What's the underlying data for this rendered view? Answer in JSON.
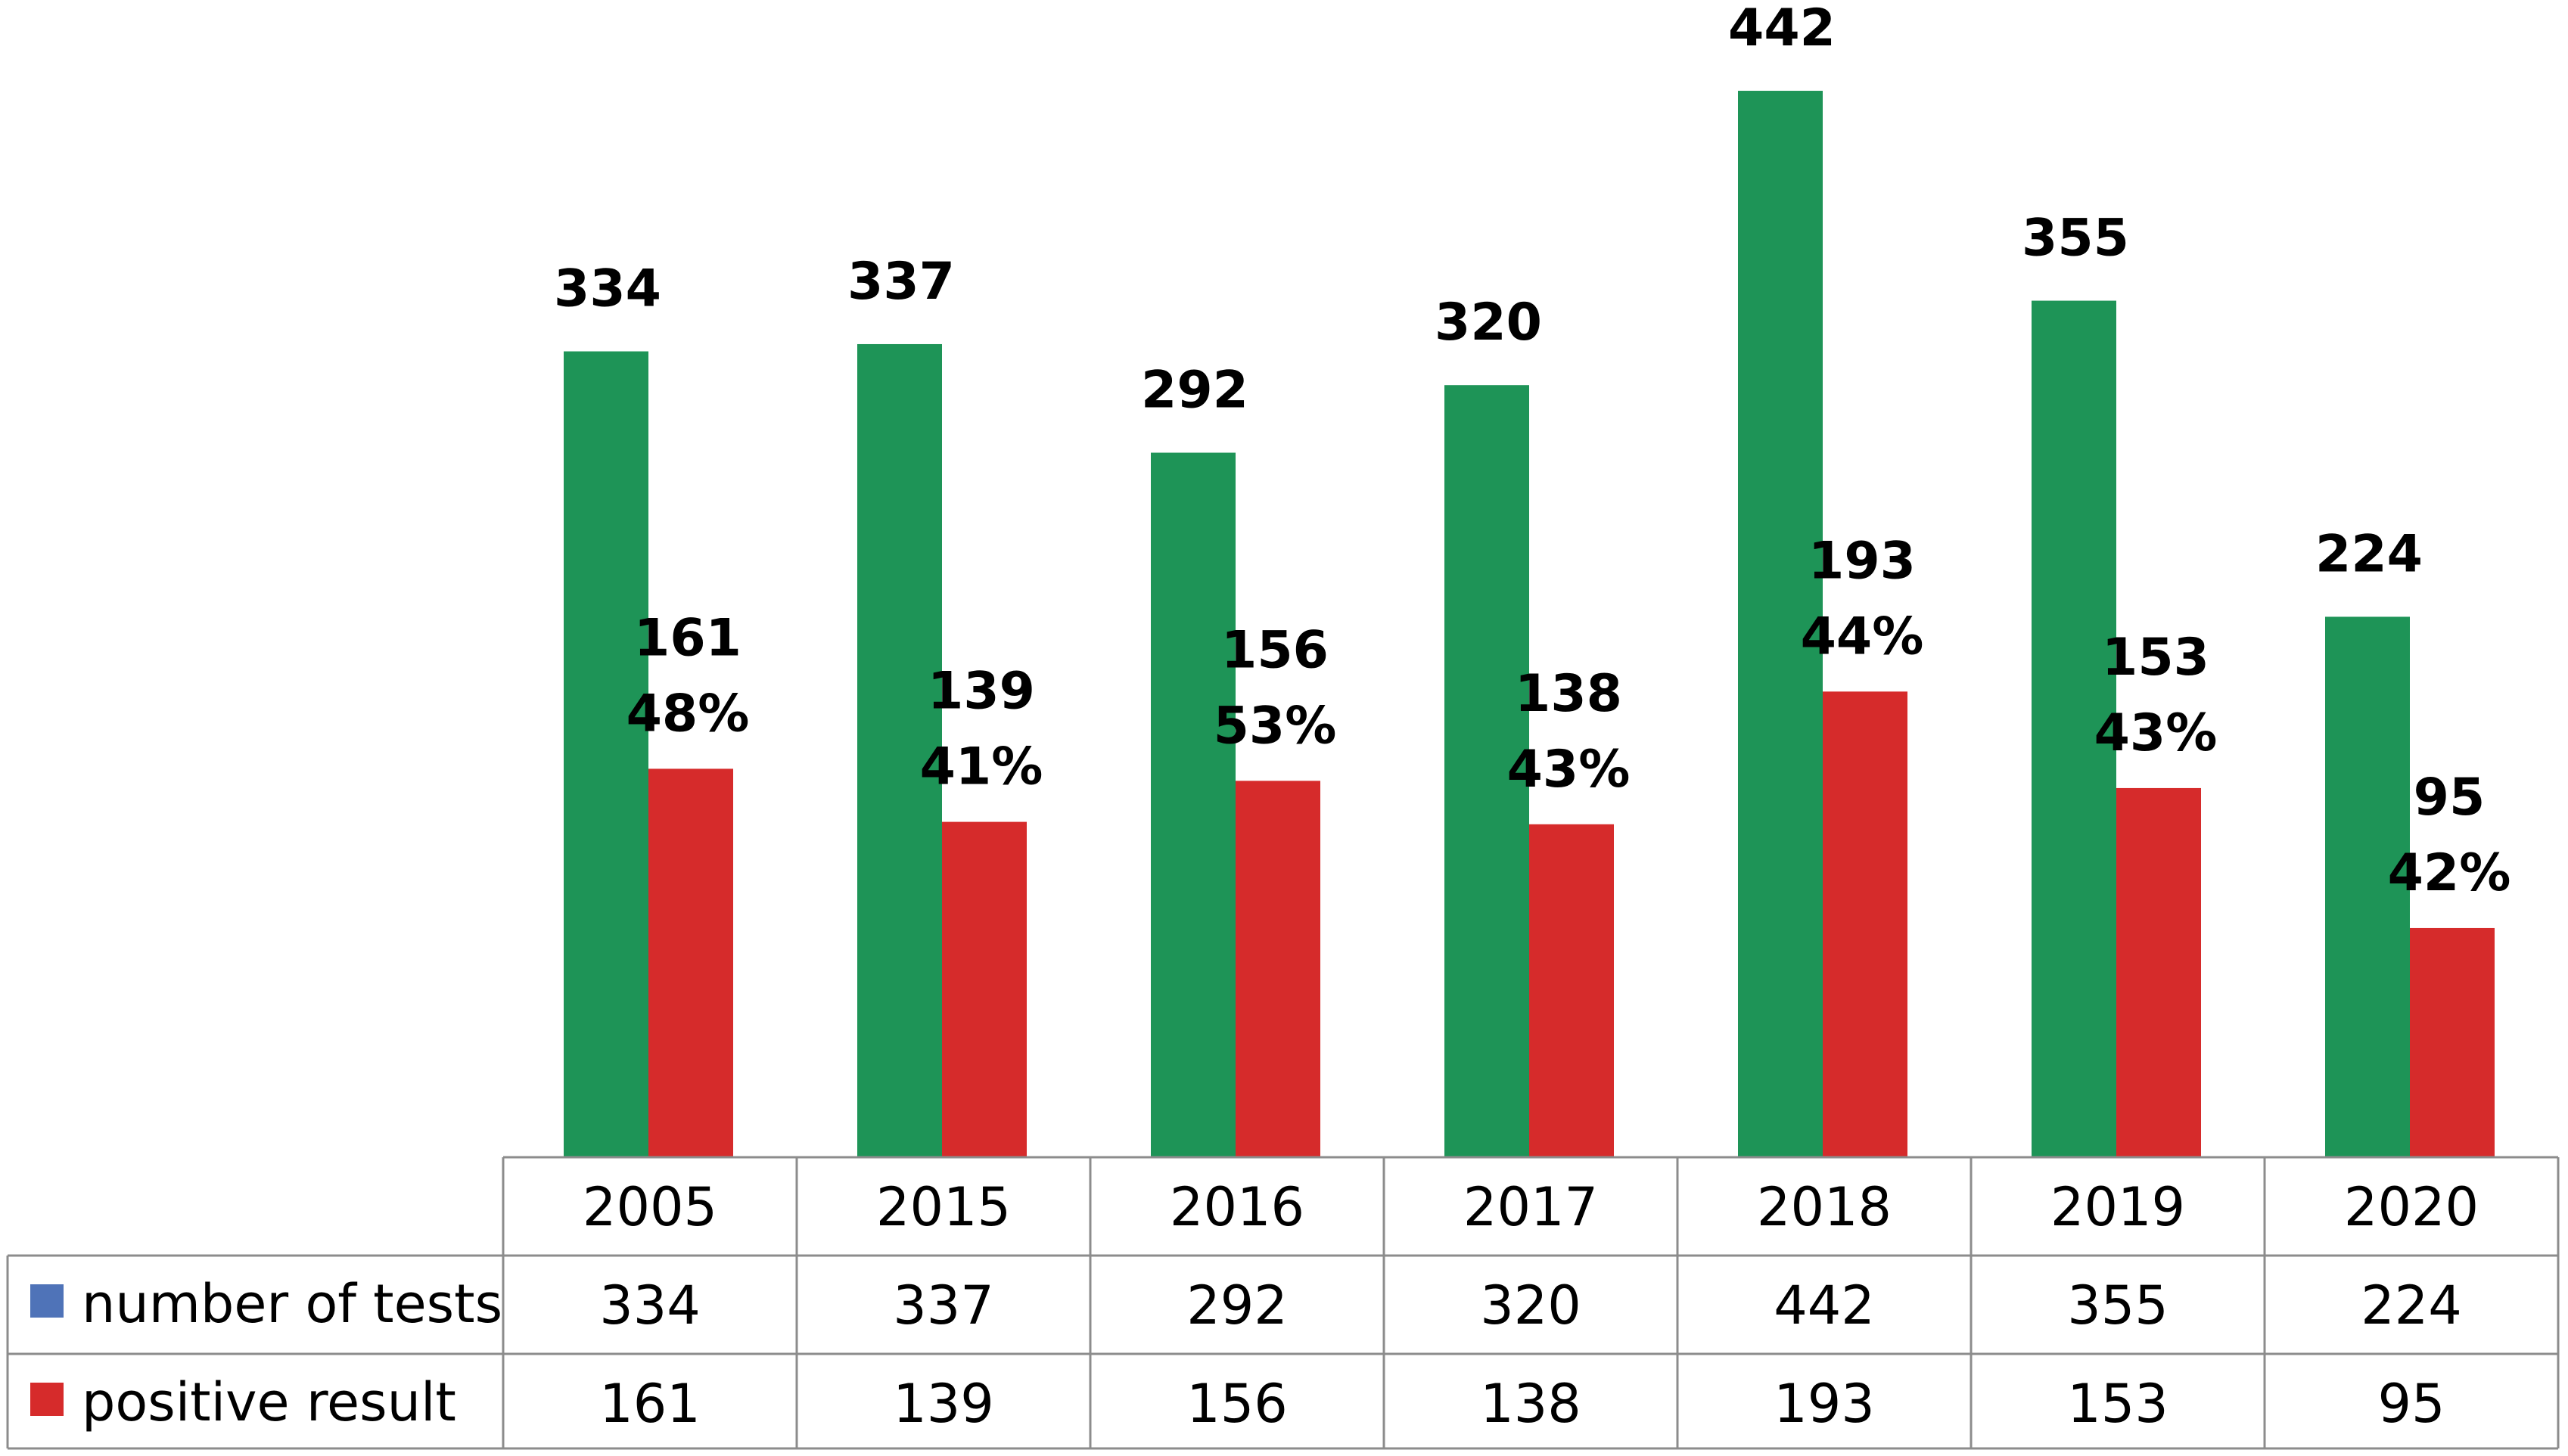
{
  "chart_data": {
    "type": "bar",
    "categories": [
      "2005",
      "2015",
      "2016",
      "2017",
      "2018",
      "2019",
      "2020"
    ],
    "series": [
      {
        "name": "number of tests",
        "values": [
          334,
          337,
          292,
          320,
          442,
          355,
          224
        ],
        "color": "#1e9457",
        "legend_color": "#4f73b8",
        "labels": [
          "334",
          "337",
          "292",
          "320",
          "442",
          "355",
          "224"
        ]
      },
      {
        "name": "positive result",
        "values": [
          161,
          139,
          156,
          138,
          193,
          153,
          95
        ],
        "color": "#d62b2b",
        "legend_color": "#d62b2b",
        "labels": [
          "161",
          "139",
          "156",
          "138",
          "193",
          "153",
          "95"
        ],
        "percent_labels": [
          "48%",
          "41%",
          "53%",
          "43%",
          "44%",
          "43%",
          "42%"
        ]
      }
    ],
    "ylim": [
      0,
      480
    ],
    "grid": false,
    "legend": "data-table",
    "data_table": true,
    "title": "",
    "xlabel": "",
    "ylabel": ""
  }
}
